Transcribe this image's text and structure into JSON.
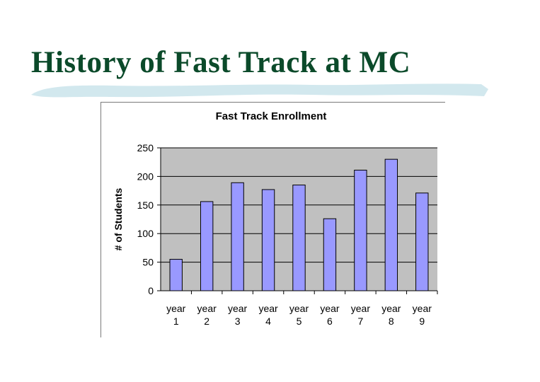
{
  "slide": {
    "title": "History of Fast Track at MC",
    "accent_color": "#d2e8ee",
    "title_color": "#0b4a2a"
  },
  "chart_data": {
    "type": "bar",
    "title": "Fast Track Enrollment",
    "xlabel": "",
    "ylabel": "# of Students",
    "categories": [
      [
        "year",
        "1"
      ],
      [
        "year",
        "2"
      ],
      [
        "year",
        "3"
      ],
      [
        "year",
        "4"
      ],
      [
        "year",
        "5"
      ],
      [
        "year",
        "6"
      ],
      [
        "year",
        "7"
      ],
      [
        "year",
        "8"
      ],
      [
        "year",
        "9"
      ]
    ],
    "values": [
      55,
      156,
      189,
      177,
      185,
      126,
      211,
      230,
      171
    ],
    "ylim": [
      0,
      250
    ],
    "yticks": [
      0,
      50,
      100,
      150,
      200,
      250
    ],
    "grid": true,
    "legend": "none",
    "bar_color": "#9999ff",
    "plot_background": "#c0c0c0"
  }
}
